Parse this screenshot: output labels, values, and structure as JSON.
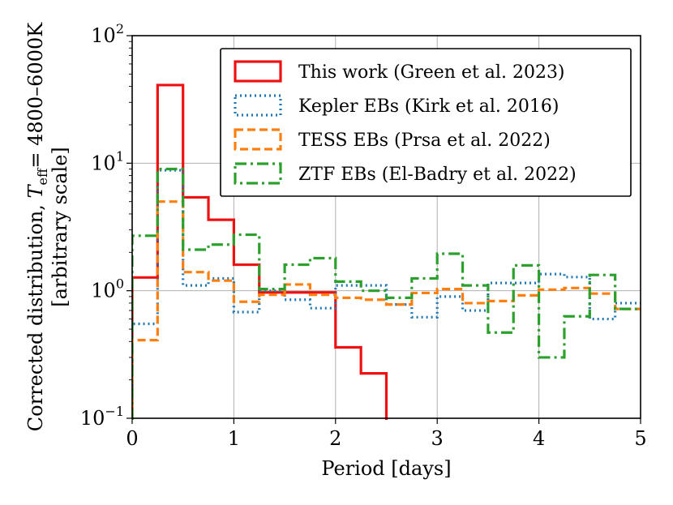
{
  "chart_data": {
    "type": "step",
    "title": "",
    "xlabel": "Period [days]",
    "ylabel": {
      "line1_prefix": "Corrected distribution, ",
      "T": "T",
      "T_sub": "eff",
      "line1_suffix": "= 4800–6000K",
      "line2": "[arbitrary scale]"
    },
    "xlim": [
      0,
      5
    ],
    "ylim": [
      0.1,
      100
    ],
    "yscale": "log",
    "grid": true,
    "legend_position": "upper-right",
    "x_ticks": [
      "0",
      "1",
      "2",
      "3",
      "4",
      "5"
    ],
    "y_ticks": [
      {
        "base": "10",
        "exp": "−1"
      },
      {
        "base": "10",
        "exp": "0"
      },
      {
        "base": "10",
        "exp": "1"
      },
      {
        "base": "10",
        "exp": "2"
      }
    ],
    "bin_edges": [
      0,
      0.25,
      0.5,
      0.75,
      1.0,
      1.25,
      1.5,
      1.75,
      2.0,
      2.25,
      2.5,
      2.75,
      3.0,
      3.25,
      3.5,
      3.75,
      4.0,
      4.25,
      4.5,
      4.75,
      5.0
    ],
    "series": [
      {
        "name": "This work (Green et al. 2023)",
        "color": "#ee1111",
        "style": "solid",
        "values": [
          1.27,
          41,
          5.4,
          3.6,
          1.6,
          0.97,
          0.97,
          0.97,
          0.36,
          0.225,
          0.0001,
          null,
          null,
          null,
          null,
          null,
          null,
          null,
          null,
          null
        ]
      },
      {
        "name": "Kepler EBs (Kirk et al. 2016)",
        "color": "#1f77b4",
        "style": "dotted",
        "values": [
          0.55,
          8.8,
          1.1,
          1.25,
          0.68,
          1.0,
          0.85,
          0.73,
          1.1,
          1.1,
          0.78,
          0.62,
          0.9,
          0.7,
          1.15,
          1.15,
          1.35,
          1.28,
          0.6,
          0.8
        ]
      },
      {
        "name": "TESS EBs (Prsa et al. 2022)",
        "color": "#ff7f0e",
        "style": "dashed",
        "values": [
          0.41,
          5.0,
          1.4,
          1.2,
          0.82,
          0.93,
          1.12,
          0.93,
          0.88,
          0.85,
          0.78,
          0.96,
          1.03,
          0.8,
          0.83,
          0.92,
          1.02,
          1.05,
          0.95,
          0.72
        ]
      },
      {
        "name": "ZTF EBs (El-Badry et al. 2022)",
        "color": "#2ca02c",
        "style": "dashdot",
        "values": [
          2.7,
          9.0,
          2.1,
          2.3,
          2.75,
          1.03,
          1.6,
          1.8,
          1.18,
          1.0,
          0.88,
          1.25,
          1.95,
          1.1,
          0.47,
          1.58,
          0.3,
          0.63,
          1.33,
          0.72
        ]
      }
    ]
  }
}
